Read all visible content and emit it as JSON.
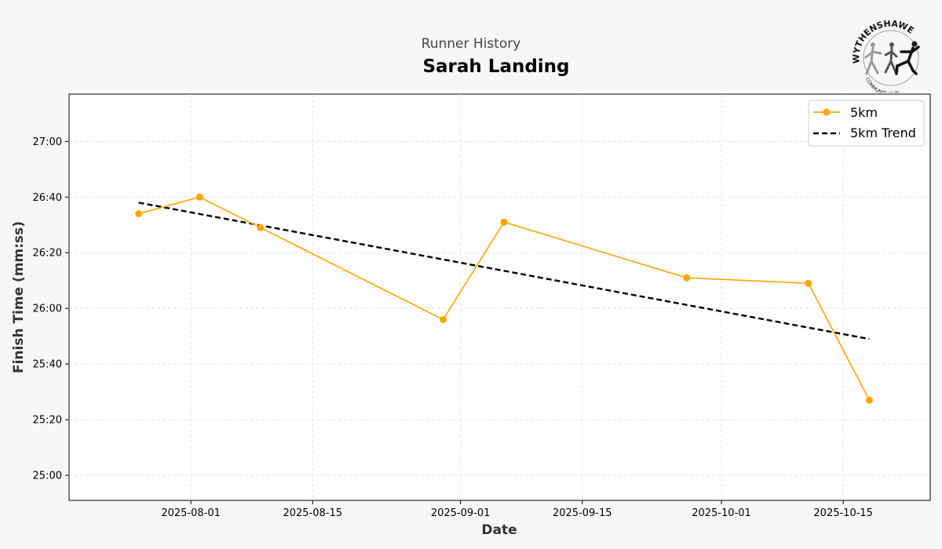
{
  "header": {
    "subtitle": "Runner History",
    "title": "Sarah Landing"
  },
  "logo": {
    "top_text": "WYTHENSHAWE",
    "bottom_text": "COMMUNITY RUN",
    "icon": "runners-logo-icon"
  },
  "colors": {
    "series": "#FFA500",
    "trend": "#000000",
    "background": "#f7f7f7",
    "plot_bg": "#ffffff",
    "grid": "#dddddd"
  },
  "chart_data": {
    "type": "line",
    "xlabel": "Date",
    "ylabel": "Finish Time (mm:ss)",
    "xlim": [
      "2025-07-18",
      "2025-10-25"
    ],
    "ylim": [
      "24:51",
      "27:17"
    ],
    "x_ticks": [
      "2025-08-01",
      "2025-08-15",
      "2025-09-01",
      "2025-09-15",
      "2025-10-01",
      "2025-10-15"
    ],
    "y_ticks": [
      "25:00",
      "25:20",
      "25:40",
      "26:00",
      "26:20",
      "26:40",
      "27:00"
    ],
    "grid": true,
    "legend_position": "top-right",
    "series": [
      {
        "name": "5km",
        "style": "solid-line-with-markers",
        "points": [
          {
            "x": "2025-07-26",
            "y": "26:34"
          },
          {
            "x": "2025-08-02",
            "y": "26:40"
          },
          {
            "x": "2025-08-09",
            "y": "26:29"
          },
          {
            "x": "2025-08-30",
            "y": "25:56"
          },
          {
            "x": "2025-09-06",
            "y": "26:31"
          },
          {
            "x": "2025-09-27",
            "y": "26:11"
          },
          {
            "x": "2025-10-11",
            "y": "26:09"
          },
          {
            "x": "2025-10-18",
            "y": "25:27"
          }
        ]
      },
      {
        "name": "5km Trend",
        "style": "dashed-line",
        "points": [
          {
            "x": "2025-07-26",
            "y": "26:38"
          },
          {
            "x": "2025-10-18",
            "y": "25:49"
          }
        ]
      }
    ]
  }
}
